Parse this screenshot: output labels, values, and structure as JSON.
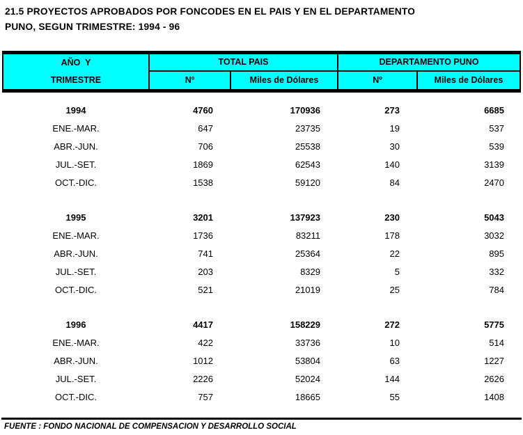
{
  "title": {
    "line1": "21.5 PROYECTOS APROBADOS POR FONCODES EN EL PAIS Y EN EL DEPARTAMENTO",
    "line2": "PUNO, SEGUN TRIMESTRE: 1994 - 96"
  },
  "colors": {
    "header_bg": "#00ffff",
    "border": "#000000"
  },
  "table": {
    "row_header": {
      "line1": "AÑO  Y",
      "line2": "TRIMESTRE"
    },
    "groups": [
      {
        "label": "TOTAL PAIS",
        "columns": [
          "Nº",
          "Miles de Dólares"
        ]
      },
      {
        "label": "DEPARTAMENTO PUNO",
        "columns": [
          "Nº",
          "Miles de Dólares"
        ]
      }
    ],
    "blocks": [
      {
        "year": "1994",
        "totals": [
          "4760",
          "170936",
          "273",
          "6685"
        ],
        "rows": [
          {
            "label": "ENE.-MAR.",
            "values": [
              "647",
              "23735",
              "19",
              "537"
            ]
          },
          {
            "label": "ABR.-JUN.",
            "values": [
              "706",
              "25538",
              "30",
              "539"
            ]
          },
          {
            "label": "JUL.-SET.",
            "values": [
              "1869",
              "62543",
              "140",
              "3139"
            ]
          },
          {
            "label": "OCT.-DIC.",
            "values": [
              "1538",
              "59120",
              "84",
              "2470"
            ]
          }
        ]
      },
      {
        "year": "1995",
        "totals": [
          "3201",
          "137923",
          "230",
          "5043"
        ],
        "rows": [
          {
            "label": "ENE.-MAR.",
            "values": [
              "1736",
              "83211",
              "178",
              "3032"
            ]
          },
          {
            "label": "ABR.-JUN.",
            "values": [
              "741",
              "25364",
              "22",
              "895"
            ]
          },
          {
            "label": "JUL.-SET.",
            "values": [
              "203",
              "8329",
              "5",
              "332"
            ]
          },
          {
            "label": "OCT.-DIC.",
            "values": [
              "521",
              "21019",
              "25",
              "784"
            ]
          }
        ]
      },
      {
        "year": "1996",
        "totals": [
          "4417",
          "158229",
          "272",
          "5775"
        ],
        "rows": [
          {
            "label": "ENE.-MAR.",
            "values": [
              "422",
              "33736",
              "10",
              "514"
            ]
          },
          {
            "label": "ABR.-JUN.",
            "values": [
              "1012",
              "53804",
              "63",
              "1227"
            ]
          },
          {
            "label": "JUL.-SET.",
            "values": [
              "2226",
              "52024",
              "144",
              "2626"
            ]
          },
          {
            "label": "OCT.-DIC.",
            "values": [
              "757",
              "18665",
              "55",
              "1408"
            ]
          }
        ]
      }
    ]
  },
  "footer": {
    "source": "FUENTE : FONDO NACIONAL DE COMPENSACION Y DESARROLLO SOCIAL"
  }
}
